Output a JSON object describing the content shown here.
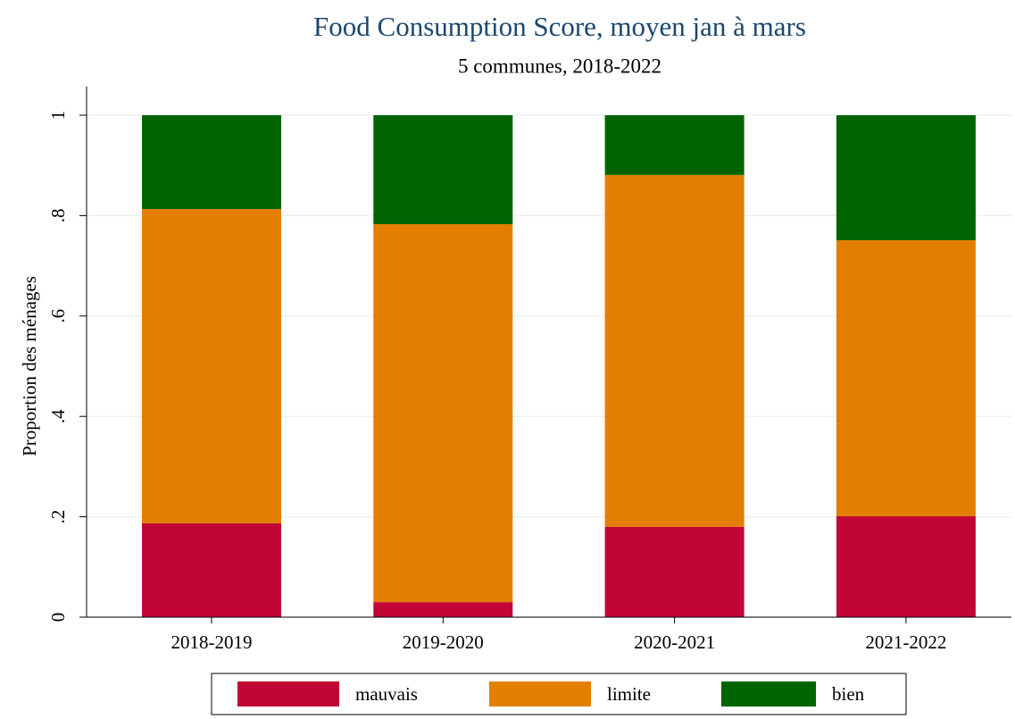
{
  "chart_data": {
    "type": "stacked_bar",
    "title": "Food Consumption Score, moyen jan à mars",
    "subtitle": "5 communes, 2018-2022",
    "y_label": "Proportion des ménages",
    "categories": [
      "2018-2019",
      "2019-2020",
      "2020-2021",
      "2021-2022"
    ],
    "series": [
      {
        "name": "mauvais",
        "color": "#c10534",
        "values": [
          0.187,
          0.03,
          0.18,
          0.201
        ]
      },
      {
        "name": "limite",
        "color": "#e37e00",
        "values": [
          0.626,
          0.753,
          0.701,
          0.55
        ]
      },
      {
        "name": "bien",
        "color": "#006400",
        "values": [
          0.187,
          0.217,
          0.119,
          0.249
        ]
      }
    ],
    "ylim": [
      0,
      1
    ],
    "yticks": [
      0,
      {
        "value": 0.2,
        "label": ".2"
      },
      {
        "value": 0.4,
        "label": ".4"
      },
      {
        "value": 0.6,
        "label": ".6"
      },
      {
        "value": 0.8,
        "label": ".8"
      },
      1
    ],
    "grid": true,
    "legend": "bottom"
  }
}
